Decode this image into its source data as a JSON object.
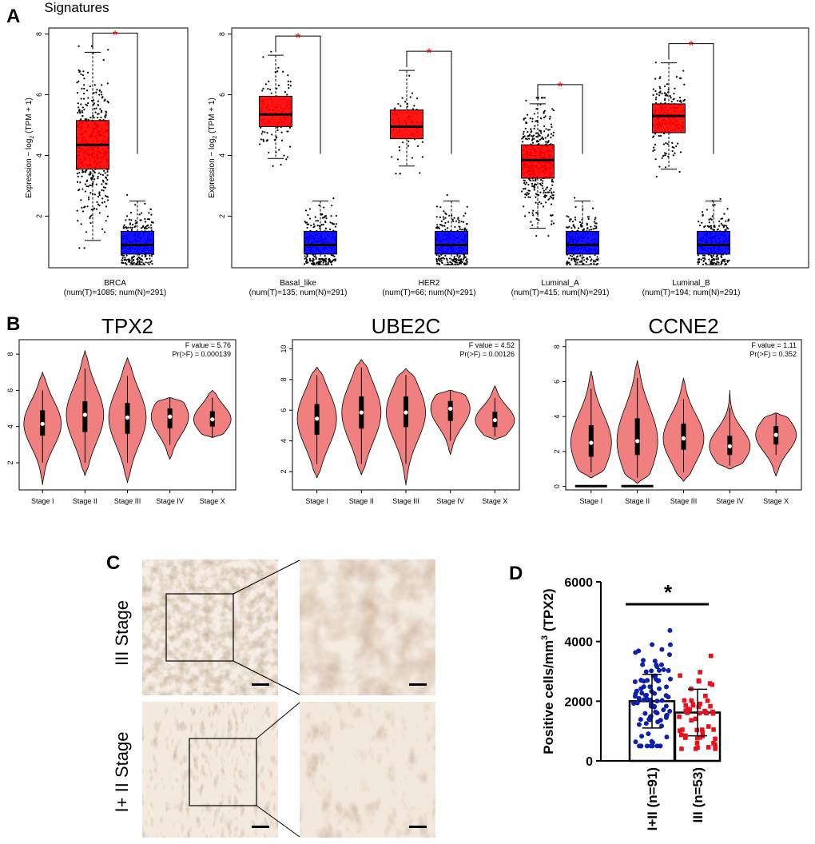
{
  "panel_labels": {
    "a": "A",
    "b": "B",
    "c": "C",
    "d": "D"
  },
  "colors": {
    "tumor": "#ff0000",
    "normal": "#0000ff",
    "violin": "#f08080",
    "star": "#ff0000",
    "d_group1": "#0d1fae",
    "d_group2": "#e8121e"
  },
  "chart_data": [
    {
      "id": "A1",
      "type": "box",
      "title": "Signatures",
      "ylabel_prefix": "Expression − log",
      "ylabel_sub": "2",
      "ylabel_suffix": " (TPM + 1)",
      "ylim": [
        0.3,
        8.2
      ],
      "yticks": [
        2,
        4,
        6,
        8
      ],
      "tick_labels": [
        "2",
        "4",
        "6",
        "8"
      ],
      "significance_marker": "*",
      "groups": [
        {
          "name": "BRCA",
          "counts": "(num(T)=1085; num(N)=291)",
          "tumor": {
            "min": 1.2,
            "q1": 3.55,
            "median": 4.35,
            "q3": 5.15,
            "max": 7.4,
            "n": 1085
          },
          "normal": {
            "min": 0.4,
            "q1": 0.75,
            "median": 1.05,
            "q3": 1.5,
            "max": 2.5,
            "n": 291
          }
        }
      ]
    },
    {
      "id": "A2",
      "type": "box",
      "ylabel_prefix": "Expression − log",
      "ylabel_sub": "2",
      "ylabel_suffix": " (TPM + 1)",
      "ylim": [
        0.3,
        8.2
      ],
      "yticks": [
        2,
        4,
        6,
        8
      ],
      "tick_labels": [
        "2",
        "4",
        "6",
        "8"
      ],
      "significance_marker": "*",
      "groups": [
        {
          "name": "Basal_like",
          "counts": "(num(T)=135; num(N)=291)",
          "tumor": {
            "min": 3.9,
            "q1": 4.95,
            "median": 5.35,
            "q3": 5.95,
            "max": 7.3,
            "n": 135
          },
          "normal": {
            "min": 0.4,
            "q1": 0.75,
            "median": 1.05,
            "q3": 1.5,
            "max": 2.5,
            "n": 291
          }
        },
        {
          "name": "HER2",
          "counts": "(num(T)=66; num(N)=291)",
          "tumor": {
            "min": 3.65,
            "q1": 4.55,
            "median": 4.95,
            "q3": 5.5,
            "max": 6.8,
            "n": 66
          },
          "normal": {
            "min": 0.4,
            "q1": 0.75,
            "median": 1.05,
            "q3": 1.5,
            "max": 2.5,
            "n": 291
          }
        },
        {
          "name": "Luminal_A",
          "counts": "(num(T)=415; num(N)=291)",
          "tumor": {
            "min": 1.6,
            "q1": 3.25,
            "median": 3.85,
            "q3": 4.35,
            "max": 5.7,
            "n": 415
          },
          "normal": {
            "min": 0.4,
            "q1": 0.75,
            "median": 1.05,
            "q3": 1.5,
            "max": 2.5,
            "n": 291
          }
        },
        {
          "name": "Luminal_B",
          "counts": "(num(T)=194; num(N)=291)",
          "tumor": {
            "min": 3.55,
            "q1": 4.75,
            "median": 5.3,
            "q3": 5.7,
            "max": 7.05,
            "n": 194
          },
          "normal": {
            "min": 0.4,
            "q1": 0.75,
            "median": 1.05,
            "q3": 1.5,
            "max": 2.5,
            "n": 291
          }
        }
      ]
    },
    {
      "id": "B1",
      "type": "violin",
      "title": "TPX2",
      "f_value": "F value = 5.76",
      "pr_f": "Pr(>F) = 0.000139",
      "ylim": [
        0.5,
        8.8
      ],
      "yticks": [
        2,
        4,
        6,
        8
      ],
      "tick_labels": [
        "2",
        "4",
        "6",
        "8"
      ],
      "categories": [
        "Stage I",
        "Stage II",
        "Stage III",
        "Stage IV",
        "Stage X"
      ],
      "stats": [
        {
          "min": 0.8,
          "max": 7.0,
          "q1": 3.5,
          "median": 4.15,
          "q3": 4.9,
          "w1": 2.0,
          "w2": 6.0
        },
        {
          "min": 1.3,
          "max": 8.2,
          "q1": 3.7,
          "median": 4.65,
          "q3": 5.4,
          "w1": 2.0,
          "w2": 7.2
        },
        {
          "min": 0.9,
          "max": 7.8,
          "q1": 3.6,
          "median": 4.5,
          "q3": 5.3,
          "w1": 2.0,
          "w2": 6.8
        },
        {
          "min": 2.2,
          "max": 5.6,
          "q1": 3.9,
          "median": 4.55,
          "q3": 5.0,
          "w1": 3.0,
          "w2": 5.6
        },
        {
          "min": 3.4,
          "max": 6.0,
          "q1": 4.0,
          "median": 4.4,
          "q3": 4.85,
          "w1": 3.4,
          "w2": 5.6
        }
      ]
    },
    {
      "id": "B2",
      "type": "violin",
      "title": "UBE2C",
      "f_value": "F value = 4.52",
      "pr_f": "Pr(>F) = 0.00126",
      "ylim": [
        0.8,
        10.6
      ],
      "yticks": [
        2,
        4,
        6,
        8,
        10
      ],
      "tick_labels": [
        "2",
        "4",
        "6",
        "8",
        "10"
      ],
      "categories": [
        "Stage I",
        "Stage II",
        "Stage III",
        "Stage IV",
        "Stage X"
      ],
      "stats": [
        {
          "min": 1.6,
          "max": 8.8,
          "q1": 4.4,
          "median": 5.45,
          "q3": 6.4,
          "w1": 2.5,
          "w2": 8.3
        },
        {
          "min": 1.8,
          "max": 9.3,
          "q1": 4.8,
          "median": 5.85,
          "q3": 6.9,
          "w1": 2.5,
          "w2": 8.8
        },
        {
          "min": 1.1,
          "max": 8.7,
          "q1": 4.9,
          "median": 5.85,
          "q3": 6.9,
          "w1": 2.5,
          "w2": 8.3
        },
        {
          "min": 3.1,
          "max": 7.3,
          "q1": 5.3,
          "median": 6.1,
          "q3": 6.6,
          "w1": 4.0,
          "w2": 7.3
        },
        {
          "min": 4.1,
          "max": 7.6,
          "q1": 4.9,
          "median": 5.35,
          "q3": 5.9,
          "w1": 4.3,
          "w2": 6.8
        }
      ]
    },
    {
      "id": "B3",
      "type": "violin",
      "title": "CCNE2",
      "f_value": "F value = 1.11",
      "pr_f": "Pr(>F) = 0.352",
      "ylim": [
        -0.2,
        8.4
      ],
      "yticks": [
        0,
        2,
        4,
        6,
        8
      ],
      "tick_labels": [
        "0",
        "2",
        "4",
        "6",
        "8"
      ],
      "categories": [
        "Stage I",
        "Stage II",
        "Stage III",
        "Stage IV",
        "Stage X"
      ],
      "stats": [
        {
          "min": 0.5,
          "max": 6.6,
          "q1": 1.7,
          "median": 2.5,
          "q3": 3.5,
          "w1": 0.8,
          "w2": 5.6
        },
        {
          "min": 0.2,
          "max": 7.2,
          "q1": 1.8,
          "median": 2.6,
          "q3": 3.9,
          "w1": 0.5,
          "w2": 6.2
        },
        {
          "min": 0.3,
          "max": 6.2,
          "q1": 2.1,
          "median": 2.75,
          "q3": 3.6,
          "w1": 0.8,
          "w2": 5.0
        },
        {
          "min": 1.0,
          "max": 5.5,
          "q1": 1.8,
          "median": 2.3,
          "q3": 2.9,
          "w1": 1.2,
          "w2": 4.5
        },
        {
          "min": 0.6,
          "max": 4.2,
          "q1": 2.4,
          "median": 2.95,
          "q3": 3.45,
          "w1": 1.8,
          "w2": 4.2
        }
      ]
    },
    {
      "id": "D",
      "type": "bar_scatter",
      "ylabel": "Positive cells/mm",
      "ylabel_sup": "3",
      "ylabel_tail": " (TPX2)",
      "ylim": [
        0,
        6000
      ],
      "yticks": [
        0,
        2000,
        4000,
        6000
      ],
      "tick_labels": [
        "0",
        "2000",
        "4000",
        "6000"
      ],
      "significance_marker": "*",
      "categories": [
        "I+II (n=91)",
        "III (n=53)"
      ],
      "means": [
        2000,
        1620
      ],
      "sd": [
        900,
        780
      ],
      "n": [
        91,
        53
      ]
    }
  ],
  "ihc": {
    "top_label": "III  Stage",
    "bottom_label": "I+ II  Stage"
  }
}
